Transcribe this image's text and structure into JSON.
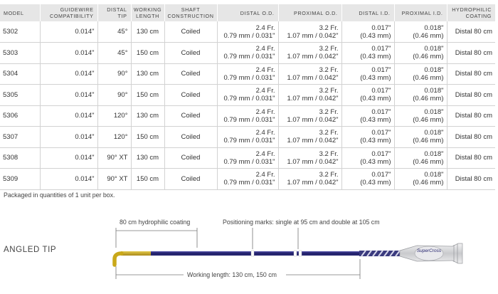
{
  "table": {
    "headers": {
      "model": "MODEL",
      "guidewire_1": "GUIDEWIRE",
      "guidewire_2": "COMPATIBILITY",
      "distal_tip_1": "DISTAL",
      "distal_tip_2": "TIP",
      "working_length_1": "WORKING",
      "working_length_2": "LENGTH",
      "shaft_construction_1": "SHAFT",
      "shaft_construction_2": "CONSTRUCTION",
      "distal_od": "DISTAL O.D.",
      "proximal_od": "PROXIMAL O.D.",
      "distal_id": "DISTAL I.D.",
      "proximal_id": "PROXIMAL I.D.",
      "hydrophilic_1": "HYDROPHILIC",
      "hydrophilic_2": "COATING"
    },
    "rows": [
      {
        "model": "5302",
        "guidewire": "0.014\"",
        "tip": "45°",
        "length": "130 cm",
        "shaft": "Coiled",
        "distal_od_1": "2.4 Fr.",
        "distal_od_2": "0.79 mm / 0.031\"",
        "proximal_od_1": "3.2 Fr.",
        "proximal_od_2": "1.07 mm / 0.042\"",
        "distal_id_1": "0.017\"",
        "distal_id_2": "(0.43 mm)",
        "proximal_id_1": "0.018\"",
        "proximal_id_2": "(0.46 mm)",
        "coating": "Distal 80 cm"
      },
      {
        "model": "5303",
        "guidewire": "0.014\"",
        "tip": "45°",
        "length": "150 cm",
        "shaft": "Coiled",
        "distal_od_1": "2.4 Fr.",
        "distal_od_2": "0.79 mm / 0.031\"",
        "proximal_od_1": "3.2 Fr.",
        "proximal_od_2": "1.07 mm / 0.042\"",
        "distal_id_1": "0.017\"",
        "distal_id_2": "(0.43 mm)",
        "proximal_id_1": "0.018\"",
        "proximal_id_2": "(0.46 mm)",
        "coating": "Distal 80 cm"
      },
      {
        "model": "5304",
        "guidewire": "0.014\"",
        "tip": "90°",
        "length": "130 cm",
        "shaft": "Coiled",
        "distal_od_1": "2.4 Fr.",
        "distal_od_2": "0.79 mm / 0.031\"",
        "proximal_od_1": "3.2 Fr.",
        "proximal_od_2": "1.07 mm / 0.042\"",
        "distal_id_1": "0.017\"",
        "distal_id_2": "(0.43 mm)",
        "proximal_id_1": "0.018\"",
        "proximal_id_2": "(0.46 mm)",
        "coating": "Distal 80 cm"
      },
      {
        "model": "5305",
        "guidewire": "0.014\"",
        "tip": "90°",
        "length": "150 cm",
        "shaft": "Coiled",
        "distal_od_1": "2.4 Fr.",
        "distal_od_2": "0.79 mm / 0.031\"",
        "proximal_od_1": "3.2 Fr.",
        "proximal_od_2": "1.07 mm / 0.042\"",
        "distal_id_1": "0.017\"",
        "distal_id_2": "(0.43 mm)",
        "proximal_id_1": "0.018\"",
        "proximal_id_2": "(0.46 mm)",
        "coating": "Distal 80 cm"
      },
      {
        "model": "5306",
        "guidewire": "0.014\"",
        "tip": "120°",
        "length": "130 cm",
        "shaft": "Coiled",
        "distal_od_1": "2.4 Fr.",
        "distal_od_2": "0.79 mm / 0.031\"",
        "proximal_od_1": "3.2 Fr.",
        "proximal_od_2": "1.07 mm / 0.042\"",
        "distal_id_1": "0.017\"",
        "distal_id_2": "(0.43 mm)",
        "proximal_id_1": "0.018\"",
        "proximal_id_2": "(0.46 mm)",
        "coating": "Distal 80 cm"
      },
      {
        "model": "5307",
        "guidewire": "0.014\"",
        "tip": "120°",
        "length": "150 cm",
        "shaft": "Coiled",
        "distal_od_1": "2.4 Fr.",
        "distal_od_2": "0.79 mm / 0.031\"",
        "proximal_od_1": "3.2 Fr.",
        "proximal_od_2": "1.07 mm / 0.042\"",
        "distal_id_1": "0.017\"",
        "distal_id_2": "(0.43 mm)",
        "proximal_id_1": "0.018\"",
        "proximal_id_2": "(0.46 mm)",
        "coating": "Distal 80 cm"
      },
      {
        "model": "5308",
        "guidewire": "0.014\"",
        "tip": "90° XT",
        "length": "130 cm",
        "shaft": "Coiled",
        "distal_od_1": "2.4 Fr.",
        "distal_od_2": "0.79 mm / 0.031\"",
        "proximal_od_1": "3.2 Fr.",
        "proximal_od_2": "1.07 mm / 0.042\"",
        "distal_id_1": "0.017\"",
        "distal_id_2": "(0.43 mm)",
        "proximal_id_1": "0.018\"",
        "proximal_id_2": "(0.46 mm)",
        "coating": "Distal 80 cm"
      },
      {
        "model": "5309",
        "guidewire": "0.014\"",
        "tip": "90° XT",
        "length": "150 cm",
        "shaft": "Coiled",
        "distal_od_1": "2.4 Fr.",
        "distal_od_2": "0.79 mm / 0.031\"",
        "proximal_od_1": "3.2 Fr.",
        "proximal_od_2": "1.07 mm / 0.042\"",
        "distal_id_1": "0.017\"",
        "distal_id_2": "(0.43 mm)",
        "proximal_id_1": "0.018\"",
        "proximal_id_2": "(0.46 mm)",
        "coating": "Distal 80 cm"
      }
    ]
  },
  "footnote": "Packaged in quantities of 1 unit per box.",
  "diagram": {
    "section_label": "ANGLED TIP",
    "hydrophilic_label": "80 cm hydrophilic coating",
    "positioning_label": "Positioning marks: single at 95 cm and double at 105 cm",
    "working_length_label": "Working length: 130 cm, 150 cm",
    "hub_logo": "SuperCross",
    "colors": {
      "shaft": "#25246e",
      "tip": "#c9a81a",
      "hub": "#d9dadc",
      "line": "#777777"
    }
  }
}
